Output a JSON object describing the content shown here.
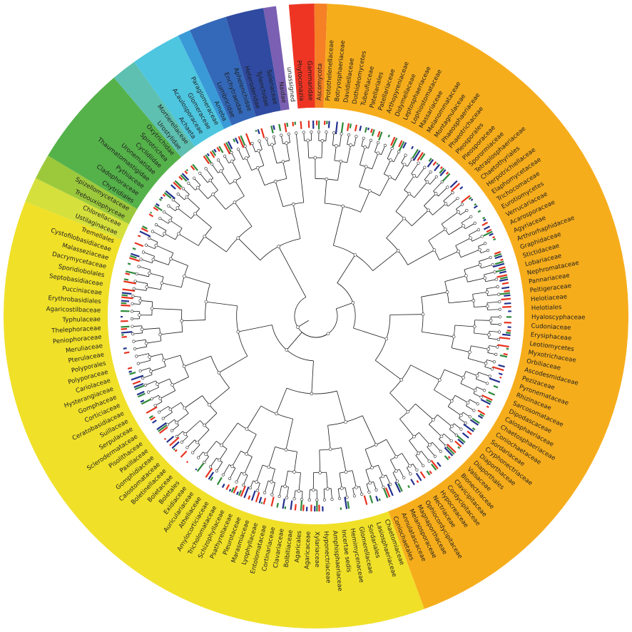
{
  "figure": {
    "background": "#ffffff",
    "text_color": "#1f1f1f",
    "bar_colors": {
      "red": "#e8321e",
      "green": "#2f8a3a",
      "blue": "#23318f"
    }
  },
  "clades": [
    {
      "color": "#ee3523",
      "count": 2
    },
    {
      "color": "#f58026",
      "count": 1
    },
    {
      "color": "#f6ad1c",
      "count": 67
    },
    {
      "color": "#f0e028",
      "count": 56
    },
    {
      "color": "#d5e03c",
      "count": 2
    },
    {
      "color": "#9cc93c",
      "count": 2
    },
    {
      "color": "#55b24a",
      "count": 8
    },
    {
      "color": "#5ec0b0",
      "count": 2
    },
    {
      "color": "#4ec6e0",
      "count": 4
    },
    {
      "color": "#3a9ad8",
      "count": 1
    },
    {
      "color": "#3468b8",
      "count": 3
    },
    {
      "color": "#2f4aa0",
      "count": 3
    },
    {
      "color": "#7a5fb2",
      "count": 1
    }
  ],
  "leaves": [
    "Phytoconazia",
    "Gammaridae",
    "Ascomycota",
    "Protothelenellaceae",
    "Botryosphaeriaceae",
    "Davidiellaceae",
    "Dothideomycetes",
    "Tubeufiaceae",
    "Patellariales",
    "Patellariaceae",
    "Arthopyreniaceae",
    "Didymellaceae",
    "Leptosphaeriaceae",
    "Lophiostomataceae",
    "Massariaceae",
    "Melanommataceae",
    "Montagnulaceae",
    "Phaeosphaeriaceae",
    "Phaeotrichaceae",
    "Pleosporales",
    "Pleosporaceae",
    "Sporormiaceae",
    "Tetraplosphaeriaceae",
    "Chaetothyriales",
    "Herpotrichiellaceae",
    "Elaphomycetaceae",
    "Trichocomaceae",
    "Eurotiomycetes",
    "Verrucariaceae",
    "Acarosporaceae",
    "Agyriaceae",
    "Arthrorhaphidaceae",
    "Graphidaceae",
    "Stictidaceae",
    "Lobariaceae",
    "Nephromataceae",
    "Pannariaceae",
    "Peltigeraceae",
    "Helotiaceae",
    "Helotiales",
    "Hyaloscyphaceae",
    "Cudoniaceae",
    "Erysiphaceae",
    "Leotiomycetes",
    "Myxotrichaceae",
    "Orbiliaceae",
    "Ascodesmidaceae",
    "Pezizaceae",
    "Pyronemataceae",
    "Rhizinaceae",
    "Sarcosomataceae",
    "Dipodascaceae",
    "Calosphaeriaceae",
    "Chaetosphaeriaceae",
    "Coniochaetaceae",
    "Sordariaceae",
    "Cryphonectriaceae",
    "Diaporthaceae",
    "Diaporthales",
    "Valsaceae",
    "Bionectriaceae",
    "Clavicipitaceae",
    "Cordycipitaceae",
    "Hypocreaceae",
    "Nectriaceae",
    "Ophiocordycipitaceae",
    "Magnaporthaceae",
    "Melanosporaceae",
    "Annulatascaceae",
    "Coniochaetales",
    "Chaetomiaceae",
    "Lasiosphaeriaceae",
    "Sordariales",
    "Glomerellaceae",
    "Hemimycenaceae",
    "Incertae sedis",
    "Amphisphaeriaceae",
    "Hyponectriaceae",
    "Xylariaceae",
    "Agaricaceae",
    "Agaricales",
    "Bolbitiaceae",
    "Clavariaceae",
    "Cortinariaceae",
    "Entolomataceae",
    "Lyophyllaceae",
    "Marasmiaceae",
    "Pleurotaceae",
    "Psathyrellaceae",
    "Schizophyllaceae",
    "Tricholomataceae",
    "Amylocorticiaceae",
    "Atheliaceae",
    "Auriculariaceae",
    "Exidiaceae",
    "Boletales",
    "Boletaceae",
    "Boletinellaceae",
    "Calostomataceae",
    "Gomphidiaceae",
    "Paxillaceae",
    "Pisolithaceae",
    "Sclerodermataceae",
    "Serpulaceae",
    "Suillaceae",
    "Ceratobasidiaceae",
    "Corticiaceae",
    "Gomphaceae",
    "Hysterangiaceae",
    "Cariolaceae",
    "Polyporaceae",
    "Polyporales",
    "Pterulaceae",
    "Meruliaceae",
    "Peniophoraceae",
    "Thelephoraceae",
    "Typhulaceae",
    "Agaricostilbaceae",
    "Erythrobasidiales",
    "Pucciniaceae",
    "Septobasidiaceae",
    "Sporidiobolales",
    "Dacrymycetaceae",
    "Malasseziaceae",
    "Cystofilobasidiaceae",
    "Tremellales",
    "Ustilaginaceae",
    "Chlorellaceae",
    "Trebouxiophyceae",
    "Spizellomycetaceae",
    "Chytridiales",
    "Cladophoraceae",
    "Pythiaceae",
    "Thaumatomastigidae",
    "Uronematidae",
    "Cyclidiidae",
    "Spirotrichea",
    "Oxytrichidae",
    "Urostylidae",
    "Mortierellaceae",
    "Achaeta",
    "Acaulosporaceae",
    "Glomeraceae",
    "Paraglomeraceae",
    "Ameba",
    "Lumbricidae",
    "Enchytraeidae",
    "Aphelenchidae",
    "Heteroderidae",
    "Tylenchidae",
    "Selenaceae",
    "Naidae",
    "unassigned"
  ]
}
